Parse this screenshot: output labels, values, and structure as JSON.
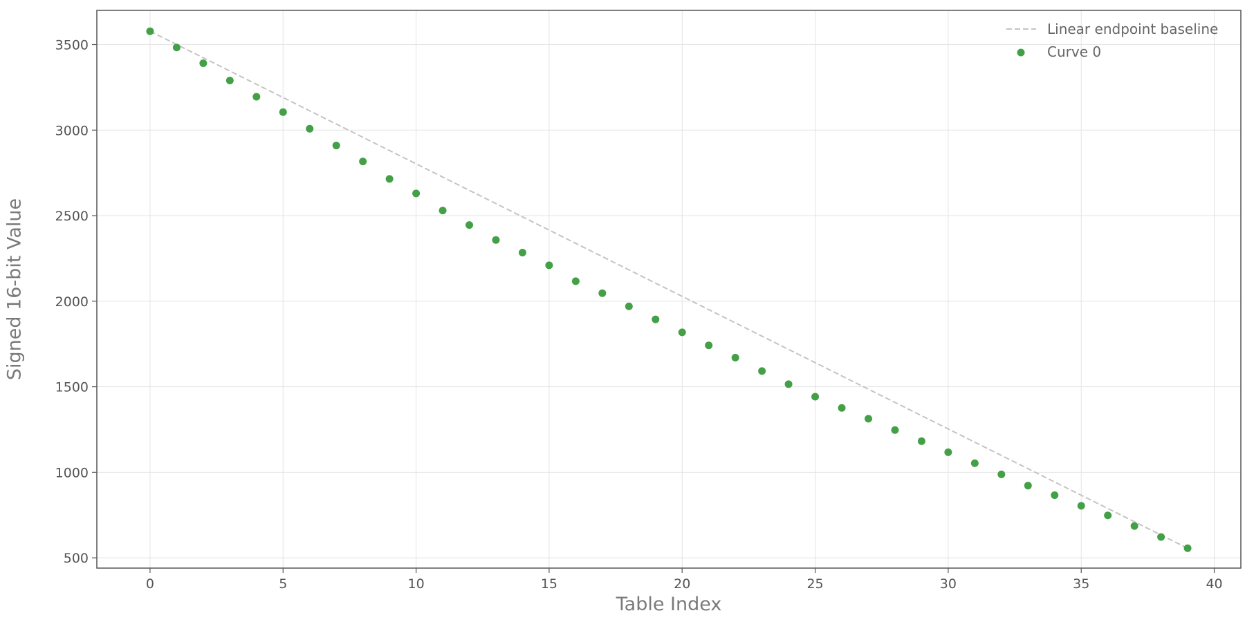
{
  "chart_data": {
    "type": "scatter",
    "title": "",
    "xlabel": "Table Index",
    "ylabel": "Signed 16-bit Value",
    "xlim": [
      -2,
      41
    ],
    "ylim": [
      440,
      3700
    ],
    "xticks": [
      0,
      5,
      10,
      15,
      20,
      25,
      30,
      35,
      40
    ],
    "yticks": [
      500,
      1000,
      1500,
      2000,
      2500,
      3000,
      3500
    ],
    "grid": true,
    "legend": "top-right",
    "series": [
      {
        "name": "Linear endpoint baseline",
        "kind": "dashed-line",
        "color": "#c4c4c4",
        "x": [
          0,
          39
        ],
        "y": [
          3578,
          556
        ]
      },
      {
        "name": "Curve 0",
        "kind": "points",
        "color": "#43a047",
        "x": [
          0,
          1,
          2,
          3,
          4,
          5,
          6,
          7,
          8,
          9,
          10,
          11,
          12,
          13,
          14,
          15,
          16,
          17,
          18,
          19,
          20,
          21,
          22,
          23,
          24,
          25,
          26,
          27,
          28,
          29,
          30,
          31,
          32,
          33,
          34,
          35,
          36,
          37,
          38,
          39
        ],
        "y": [
          3578,
          3483,
          3391,
          3290,
          3195,
          3105,
          3008,
          2910,
          2817,
          2715,
          2630,
          2530,
          2445,
          2358,
          2284,
          2210,
          2117,
          2047,
          1970,
          1894,
          1818,
          1742,
          1670,
          1592,
          1515,
          1442,
          1376,
          1313,
          1247,
          1182,
          1117,
          1053,
          988,
          922,
          866,
          804,
          748,
          686,
          622,
          556
        ]
      }
    ]
  }
}
